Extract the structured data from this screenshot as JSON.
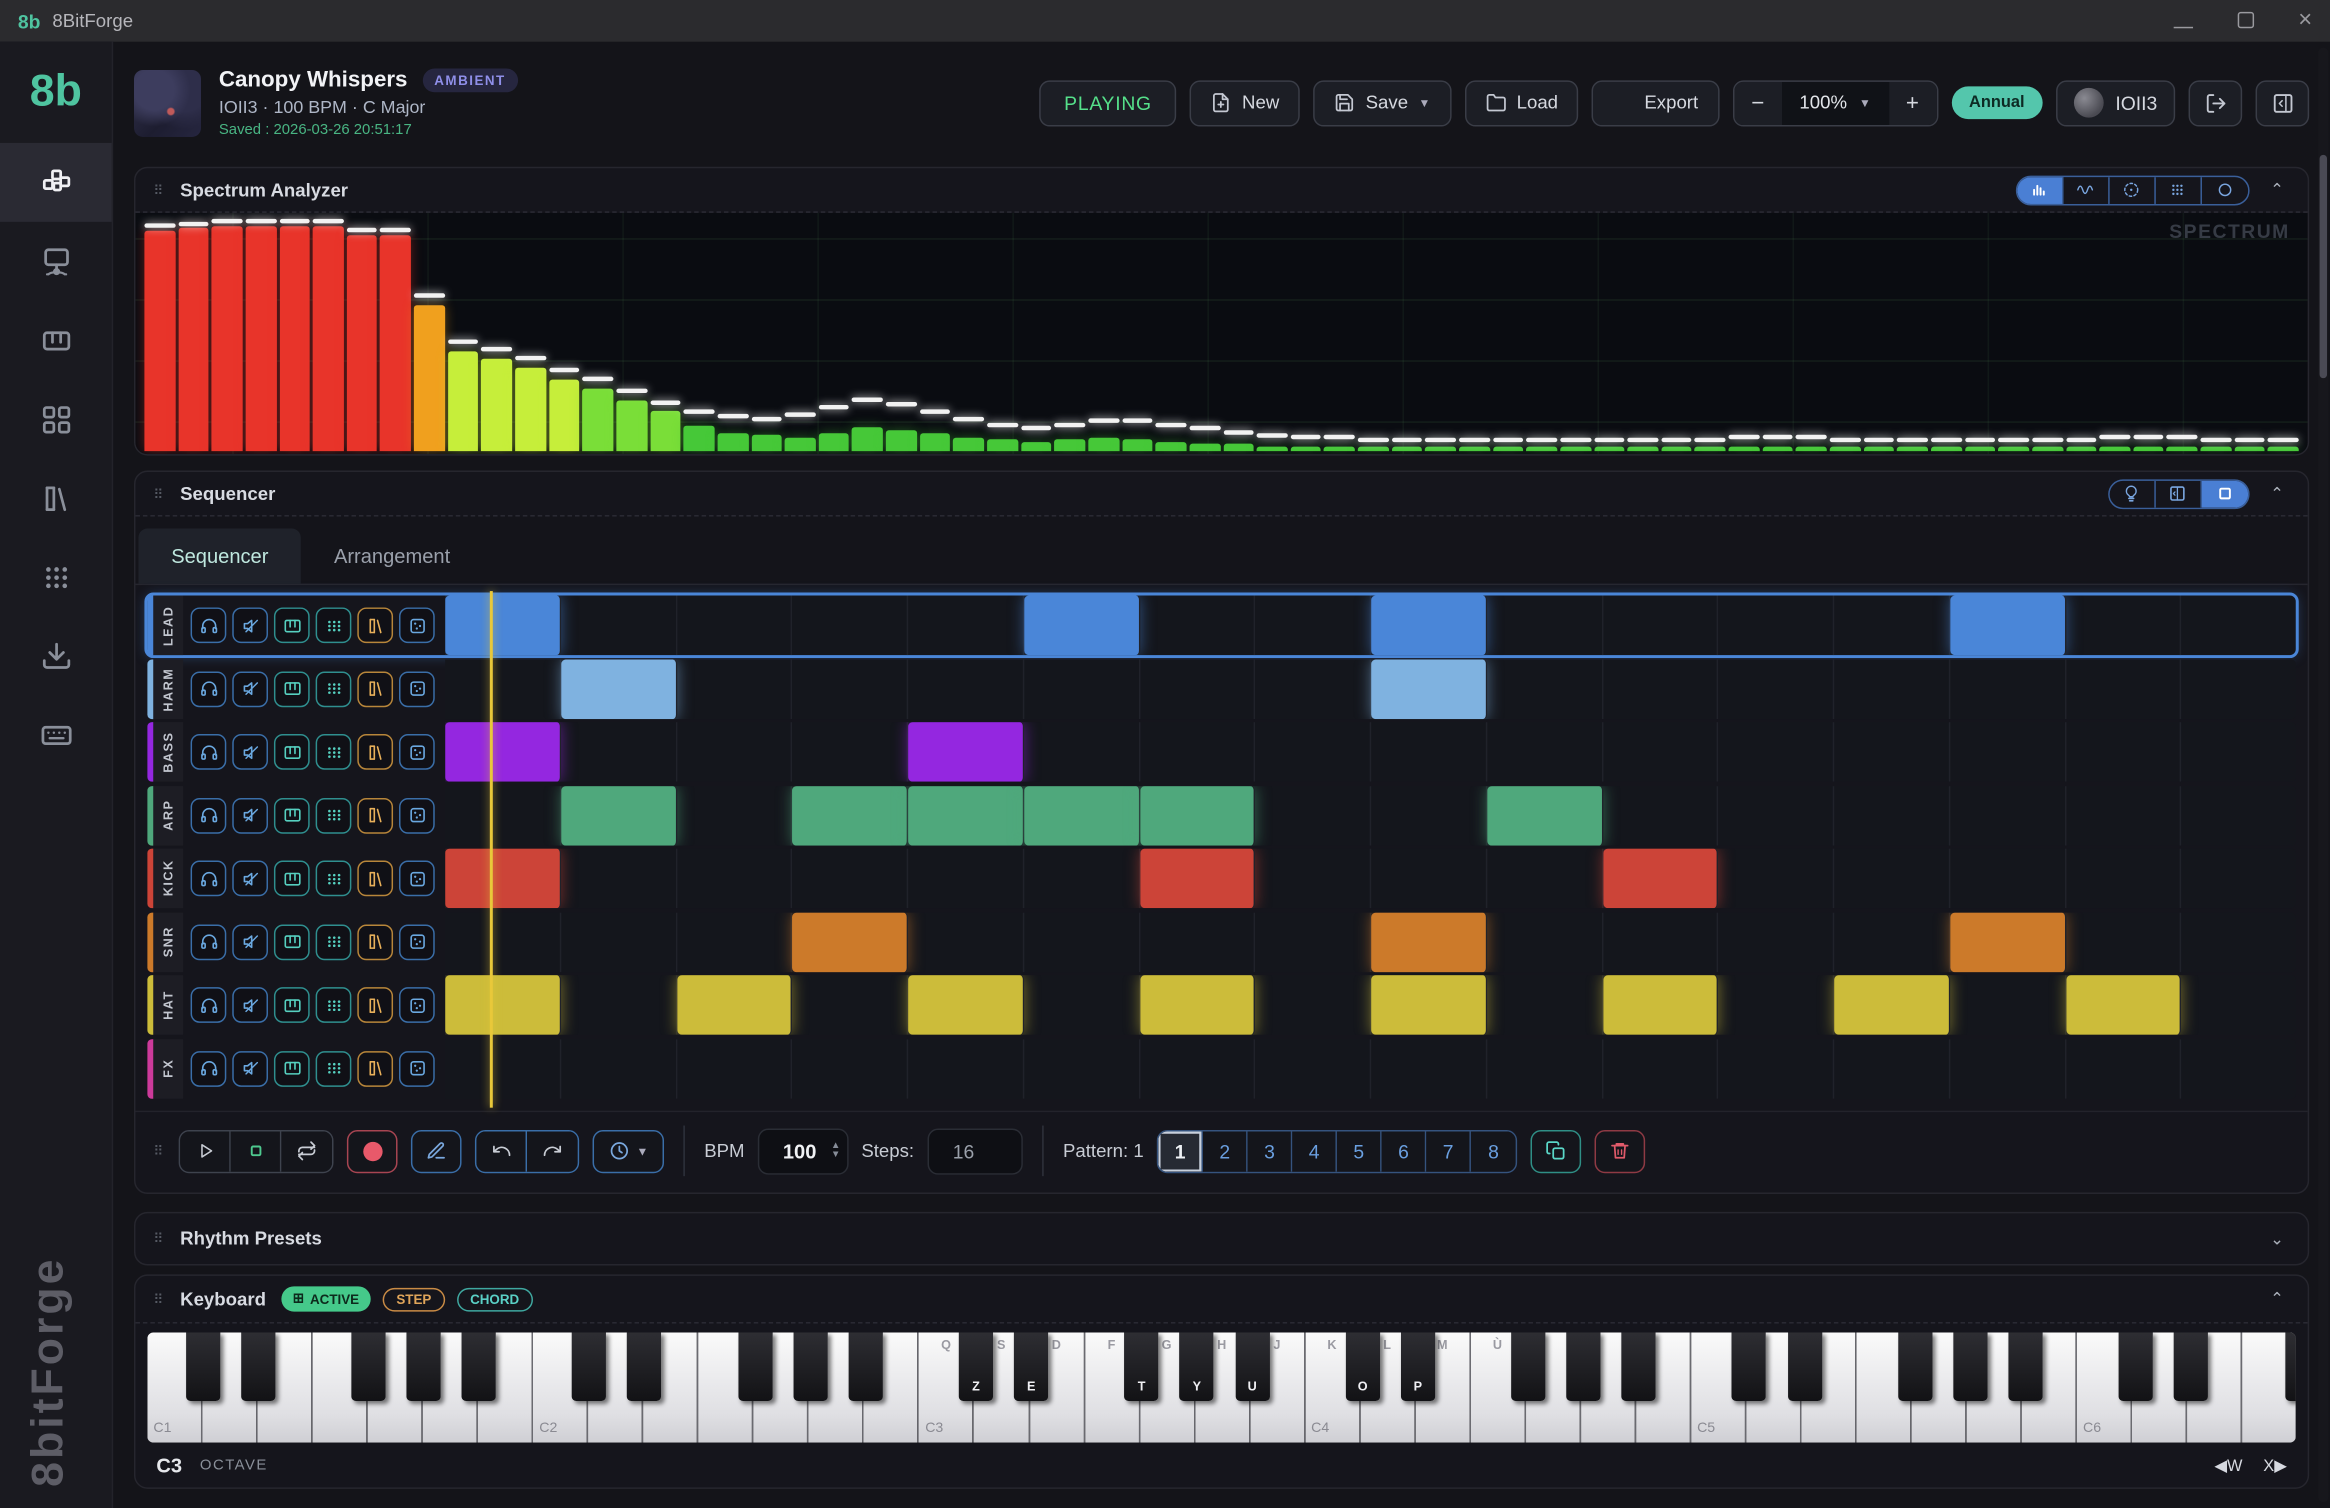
{
  "window": {
    "logo": "8b",
    "title": "8BitForge"
  },
  "header": {
    "project_title": "Canopy Whispers",
    "genre_badge": "AMBIENT",
    "subtitle": "IOII3 · 100 BPM · C Major",
    "saved": "Saved : 2026-03-26 20:51:17",
    "playing_label": "PLAYING",
    "new_label": "New",
    "save_label": "Save",
    "load_label": "Load",
    "export_label": "Export",
    "zoom_value": "100%",
    "plan_badge": "Annual",
    "username": "IOII3"
  },
  "sidebar": {
    "logo": "8b",
    "items": [
      {
        "icon": "step-sequencer-icon",
        "active": true
      },
      {
        "icon": "monitor-node-icon",
        "active": false
      },
      {
        "icon": "piano-icon",
        "active": false
      },
      {
        "icon": "squares-grid-icon",
        "active": false
      },
      {
        "icon": "library-icon",
        "active": false
      },
      {
        "icon": "dots-grid-icon",
        "active": false
      },
      {
        "icon": "download-icon",
        "active": false
      },
      {
        "icon": "keyboard-icon",
        "active": false
      }
    ],
    "watermark": "8bitForge"
  },
  "spectrum": {
    "title": "Spectrum Analyzer",
    "watermark": "SPECTRUM",
    "view_toggles": [
      "bars-view-icon",
      "wave-view-icon",
      "scope-view-icon",
      "dots-view-icon",
      "ring-view-icon"
    ],
    "active_toggle": 0,
    "chart_data": {
      "type": "bar",
      "title": "Spectrum Analyzer",
      "ylim": [
        0,
        100
      ],
      "grid": true,
      "values": [
        95,
        96,
        97,
        97,
        97,
        97,
        93,
        93,
        63,
        43,
        40,
        36,
        31,
        27,
        22,
        17,
        11,
        8,
        7,
        6,
        8,
        10,
        9,
        8,
        6,
        5,
        4,
        5,
        6,
        5,
        4,
        3,
        3,
        2,
        2,
        2,
        2,
        2,
        2,
        2,
        2,
        2,
        2,
        2,
        2,
        2,
        2,
        2,
        2,
        2,
        2,
        2,
        2,
        2,
        2,
        2,
        2,
        2,
        2,
        2,
        2,
        2,
        2,
        2
      ],
      "peaks": [
        96,
        97,
        98,
        98,
        98,
        98,
        94,
        94,
        66,
        46,
        43,
        39,
        34,
        30,
        25,
        20,
        16,
        14,
        13,
        15,
        18,
        21,
        19,
        16,
        13,
        10,
        9,
        10,
        12,
        12,
        10,
        9,
        7,
        6,
        5,
        5,
        4,
        4,
        4,
        4,
        4,
        4,
        4,
        4,
        4,
        4,
        4,
        5,
        5,
        5,
        4,
        4,
        4,
        4,
        4,
        4,
        4,
        4,
        5,
        5,
        5,
        4,
        4,
        4
      ],
      "color_thresholds": {
        "red": "#e8342a",
        "orange": "#f0a01e",
        "yellow": "#c6ee3a",
        "green": "#7ade38",
        "low": "#46c838"
      }
    }
  },
  "sequencer": {
    "title": "Sequencer",
    "view_toggles": [
      "bulb-icon",
      "split-panel-icon",
      "square-view-icon"
    ],
    "active_toggle": 2,
    "tabs": [
      {
        "label": "Sequencer",
        "active": true
      },
      {
        "label": "Arrangement",
        "active": false
      }
    ],
    "track_buttons": [
      "headphones-icon",
      "mute-icon",
      "piano-keys-icon",
      "step-grid-icon",
      "library-icon",
      "dice-icon"
    ],
    "num_steps": 16,
    "tracks": [
      {
        "name": "LEAD",
        "color": "#4a86d8",
        "selected": true,
        "steps": [
          1,
          0,
          0,
          0,
          0,
          1,
          0,
          0,
          1,
          0,
          0,
          0,
          0,
          1,
          0,
          0
        ]
      },
      {
        "name": "HARM",
        "color": "#7fb2e0",
        "selected": false,
        "steps": [
          0,
          1,
          0,
          0,
          0,
          0,
          0,
          0,
          1,
          0,
          0,
          0,
          0,
          0,
          0,
          0
        ]
      },
      {
        "name": "BASS",
        "color": "#9427e0",
        "selected": false,
        "steps": [
          1,
          0,
          0,
          0,
          1,
          0,
          0,
          0,
          0,
          0,
          0,
          0,
          0,
          0,
          0,
          0
        ]
      },
      {
        "name": "ARP",
        "color": "#4fa87c",
        "selected": false,
        "steps": [
          0,
          1,
          0,
          1,
          1,
          1,
          1,
          0,
          0,
          1,
          0,
          0,
          0,
          0,
          0,
          0
        ]
      },
      {
        "name": "KICK",
        "color": "#cc4438",
        "selected": false,
        "steps": [
          1,
          0,
          0,
          0,
          0,
          0,
          1,
          0,
          0,
          0,
          1,
          0,
          0,
          0,
          0,
          0
        ]
      },
      {
        "name": "SNR",
        "color": "#cc7a2a",
        "selected": false,
        "steps": [
          0,
          0,
          0,
          1,
          0,
          0,
          0,
          0,
          1,
          0,
          0,
          0,
          0,
          1,
          0,
          0
        ]
      },
      {
        "name": "HAT",
        "color": "#ccbc3a",
        "selected": false,
        "steps": [
          1,
          0,
          1,
          0,
          1,
          0,
          1,
          0,
          1,
          0,
          1,
          0,
          1,
          0,
          1,
          0
        ]
      },
      {
        "name": "FX",
        "color": "#cc3a9a",
        "selected": false,
        "steps": [
          0,
          0,
          0,
          0,
          0,
          0,
          0,
          0,
          0,
          0,
          0,
          0,
          0,
          0,
          0,
          0
        ]
      }
    ]
  },
  "transport": {
    "bpm_label": "BPM",
    "bpm_value": "100",
    "steps_label": "Steps:",
    "steps_value": "16",
    "pattern_label": "Pattern: 1",
    "patterns": [
      "1",
      "2",
      "3",
      "4",
      "5",
      "6",
      "7",
      "8"
    ],
    "active_pattern": "1"
  },
  "rhythm_presets": {
    "title": "Rhythm Presets"
  },
  "keyboard": {
    "title": "Keyboard",
    "active_badge": "ACTIVE",
    "step_badge": "STEP",
    "chord_badge": "CHORD",
    "octave_labels": [
      "C1",
      "C2",
      "C3",
      "C4",
      "C5",
      "C6"
    ],
    "white_key_labels": [
      "Q",
      "S",
      "D",
      "F",
      "G",
      "H",
      "J",
      "K",
      "L",
      "M",
      "Ù"
    ],
    "white_labels_start_octave": 2,
    "black_key_labels": {
      "octave2": {
        "0": "Z",
        "1": "E",
        "3": "T",
        "4": "Y",
        "5": "U"
      },
      "octave3": {
        "0": "O",
        "1": "P"
      }
    },
    "octave_value": "C3",
    "octave_caption": "OCTAVE",
    "octave_down": "◀W",
    "octave_up": "X▶"
  }
}
